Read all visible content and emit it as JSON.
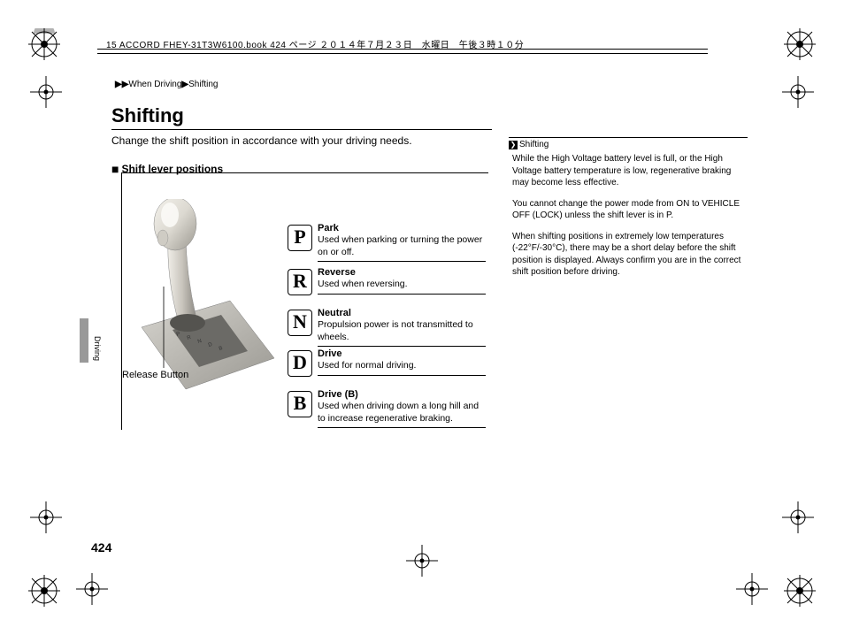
{
  "header": {
    "bookline": "15 ACCORD FHEY-31T3W6100.book  424 ページ  ２０１４年７月２３日　水曜日　午後３時１０分"
  },
  "breadcrumb": {
    "seg1": "When Driving",
    "seg2": "Shifting"
  },
  "title": "Shifting",
  "intro": "Change the shift position in accordance with your driving needs.",
  "section_heading": "Shift lever positions",
  "release_label": "Release Button",
  "positions": [
    {
      "letter": "P",
      "name": "Park",
      "desc": "Used when parking or turning the power on or off."
    },
    {
      "letter": "R",
      "name": "Reverse",
      "desc": "Used when reversing."
    },
    {
      "letter": "N",
      "name": "Neutral",
      "desc": "Propulsion power is not transmitted to wheels."
    },
    {
      "letter": "D",
      "name": "Drive",
      "desc": "Used for normal driving."
    },
    {
      "letter": "B",
      "name": "Drive (B)",
      "desc": "Used when driving down a long hill and to increase regenerative braking."
    }
  ],
  "sidebar": {
    "heading": "Shifting",
    "paras": [
      "While the High Voltage battery level is full, or the High Voltage battery temperature is low, regenerative braking may become less effective.",
      "You cannot change the power mode from ON to VEHICLE OFF (LOCK) unless the shift lever is in P.",
      "When shifting positions in extremely low temperatures (-22°F/-30°C), there may be a short delay before the shift position is displayed. Always confirm you are in the correct shift position before driving."
    ]
  },
  "side_tab_label": "Driving",
  "page_number": "424",
  "layout": {
    "position_tops": [
      252,
      302,
      348,
      394,
      440
    ]
  },
  "colors": {
    "text": "#000000",
    "lever_light": "#e8e5df",
    "lever_mid": "#c9c5bd",
    "lever_dark": "#8c8983",
    "plate": "#b8b6b0"
  }
}
